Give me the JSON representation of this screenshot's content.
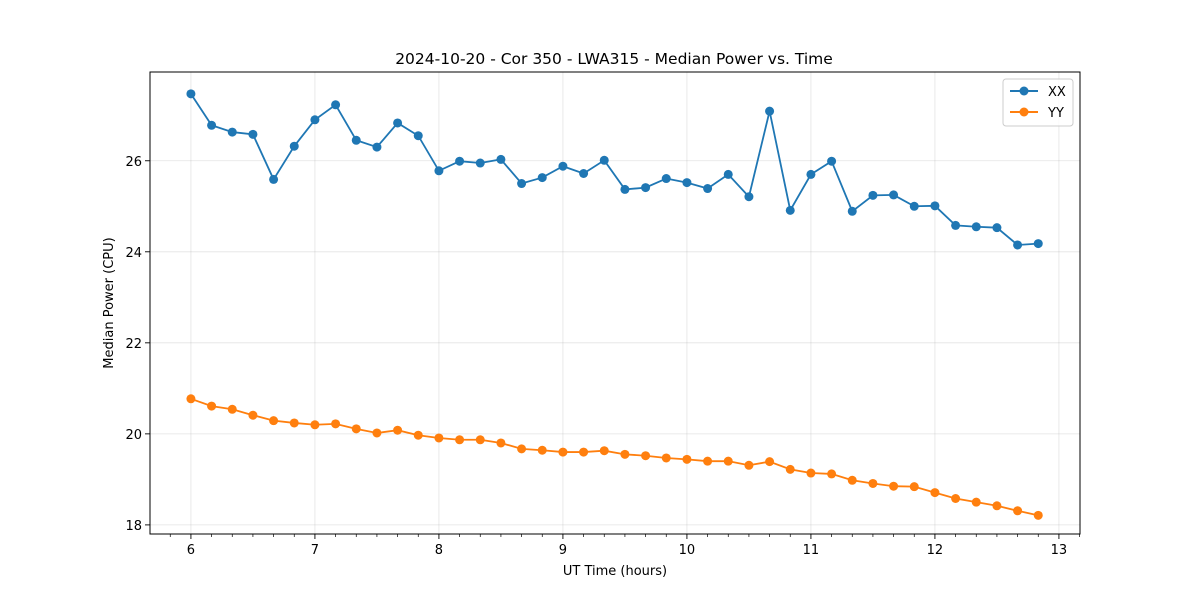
{
  "chart_data": {
    "type": "line",
    "title": "2024-10-20 - Cor 350 - LWA315 - Median Power vs. Time",
    "xlabel": "UT Time (hours)",
    "ylabel": "Median Power (CPU)",
    "xlim": [
      5.67,
      13.17
    ],
    "ylim": [
      17.8,
      27.95
    ],
    "xticks": [
      6,
      7,
      8,
      9,
      10,
      11,
      12,
      13
    ],
    "xtick_labels": [
      "6",
      "7",
      "8",
      "9",
      "10",
      "11",
      "12",
      "13"
    ],
    "yticks": [
      18,
      20,
      22,
      24,
      26
    ],
    "ytick_labels": [
      "18",
      "20",
      "22",
      "24",
      "26"
    ],
    "grid": true,
    "legend_position": "top-right",
    "x": [
      6.0,
      6.1667,
      6.3333,
      6.5,
      6.6667,
      6.8333,
      7.0,
      7.1667,
      7.3333,
      7.5,
      7.6667,
      7.8333,
      8.0,
      8.1667,
      8.3333,
      8.5,
      8.6667,
      8.8333,
      9.0,
      9.1667,
      9.3333,
      9.5,
      9.6667,
      9.8333,
      10.0,
      10.1667,
      10.3333,
      10.5,
      10.6667,
      10.8333,
      11.0,
      11.1667,
      11.3333,
      11.5,
      11.6667,
      11.8333,
      12.0,
      12.1667,
      12.3333,
      12.5,
      12.6667,
      12.8333
    ],
    "series": [
      {
        "name": "XX",
        "color": "#1f77b4",
        "values": [
          27.47,
          26.78,
          26.63,
          26.58,
          25.59,
          26.32,
          26.9,
          27.23,
          26.45,
          26.3,
          26.83,
          26.55,
          25.78,
          25.99,
          25.95,
          26.03,
          25.5,
          25.63,
          25.88,
          25.72,
          26.01,
          25.37,
          25.41,
          25.61,
          25.52,
          25.39,
          25.7,
          25.21,
          27.09,
          24.91,
          25.7,
          25.99,
          24.89,
          25.24,
          25.25,
          25.0,
          25.01,
          24.58,
          24.55,
          24.53,
          24.15,
          24.18
        ]
      },
      {
        "name": "YY",
        "color": "#ff7f0e",
        "values": [
          20.77,
          20.61,
          20.54,
          20.41,
          20.29,
          20.24,
          20.2,
          20.22,
          20.11,
          20.02,
          20.08,
          19.97,
          19.91,
          19.87,
          19.87,
          19.8,
          19.67,
          19.64,
          19.6,
          19.6,
          19.63,
          19.55,
          19.52,
          19.47,
          19.44,
          19.4,
          19.4,
          19.31,
          19.39,
          19.22,
          19.14,
          19.12,
          18.98,
          18.91,
          18.85,
          18.84,
          18.71,
          18.58,
          18.5,
          18.42,
          18.31,
          18.21
        ]
      }
    ]
  }
}
